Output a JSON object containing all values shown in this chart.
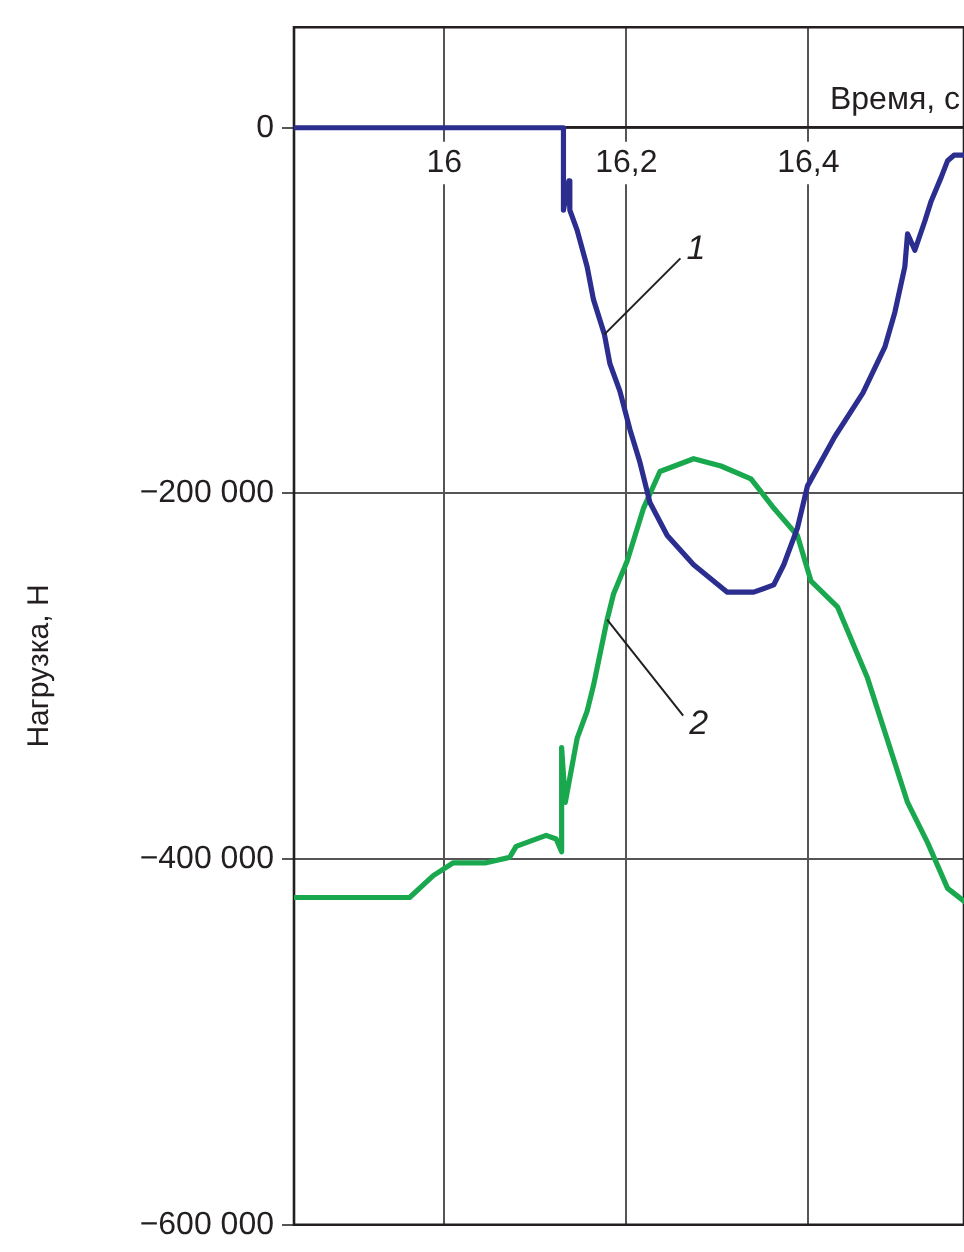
{
  "chart_data": {
    "type": "line",
    "xlabel": "Время, с",
    "ylabel": "Нагрузка, Н",
    "xlim": [
      15.835,
      16.571
    ],
    "ylim": [
      -600000,
      55000
    ],
    "xticks": [
      16,
      {
        "value": 16.2,
        "label": "16,2"
      },
      {
        "value": 16.4,
        "label": "16,4"
      }
    ],
    "yticks": [
      {
        "value": 0,
        "label": "0"
      },
      {
        "value": -200000,
        "label": "−200 000"
      },
      {
        "value": -400000,
        "label": "−400 000"
      },
      {
        "value": -600000,
        "label": "−600 000"
      }
    ],
    "grid": true,
    "legend": false,
    "marker": "none",
    "line_style": "solid",
    "annotations": [
      {
        "text": "1",
        "x": 16.176,
        "y": -113000
      },
      {
        "text": "2",
        "x": 16.179,
        "y": -269000
      }
    ],
    "series": [
      {
        "color": "#2b2e8f",
        "x": [
          15.835,
          16.112,
          16.127,
          16.131,
          16.131,
          16.137,
          16.138,
          16.146,
          16.157,
          16.164,
          16.176,
          16.182,
          16.193,
          16.204,
          16.215,
          16.226,
          16.245,
          16.274,
          16.311,
          16.34,
          16.362,
          16.373,
          16.388,
          16.399,
          16.429,
          16.46,
          16.484,
          16.495,
          16.506,
          16.509,
          16.517,
          16.528,
          16.535,
          16.546,
          16.553,
          16.56,
          16.571
        ],
        "values": [
          0,
          0,
          0,
          0,
          -45000,
          -29000,
          -45000,
          -56000,
          -76000,
          -94000,
          -113000,
          -129000,
          -144000,
          -165000,
          -183000,
          -205000,
          -223000,
          -239000,
          -254000,
          -254000,
          -250000,
          -239000,
          -219000,
          -196000,
          -169000,
          -145000,
          -120000,
          -101000,
          -76000,
          -58000,
          -67000,
          -51000,
          -40000,
          -27000,
          -18000,
          -15000,
          -15000
        ]
      },
      {
        "color": "#1aa84f",
        "x": [
          15.835,
          15.962,
          15.988,
          16.01,
          16.046,
          16.072,
          16.079,
          16.112,
          16.123,
          16.129,
          16.129,
          16.133,
          16.146,
          16.157,
          16.164,
          16.179,
          16.186,
          16.201,
          16.219,
          16.237,
          16.274,
          16.304,
          16.337,
          16.362,
          16.388,
          16.403,
          16.432,
          16.465,
          16.509,
          16.531,
          16.553,
          16.571
        ],
        "values": [
          -421000,
          -421000,
          -409000,
          -402000,
          -402000,
          -399000,
          -393000,
          -387000,
          -389000,
          -396000,
          -339000,
          -369000,
          -334000,
          -319000,
          -305000,
          -269000,
          -255000,
          -237000,
          -208000,
          -188000,
          -181000,
          -185000,
          -192000,
          -208000,
          -223000,
          -248000,
          -262000,
          -301000,
          -369000,
          -391000,
          -416000,
          -423000
        ]
      }
    ]
  }
}
